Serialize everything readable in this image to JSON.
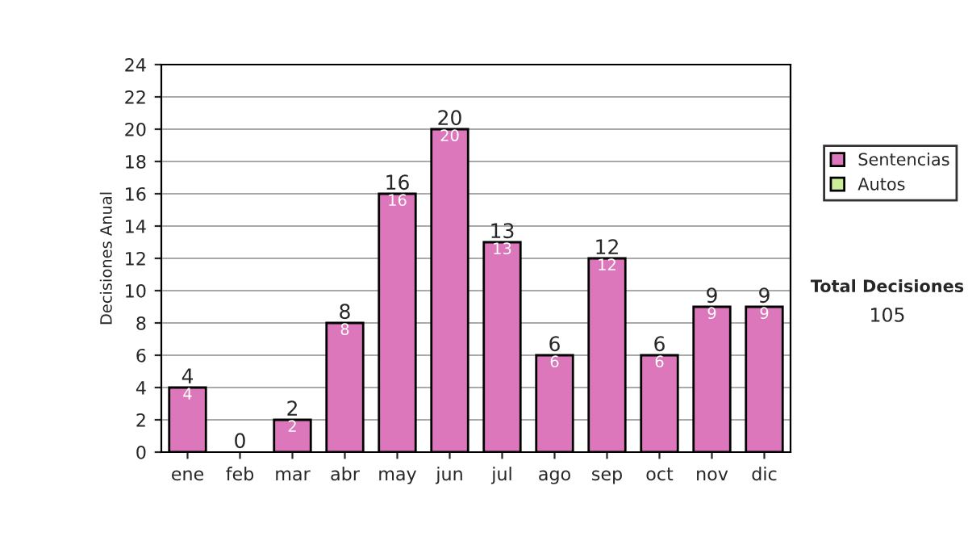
{
  "chart_data": {
    "type": "bar",
    "stacked": true,
    "ylabel": "Decisiones Anual",
    "categories": [
      "ene",
      "feb",
      "mar",
      "abr",
      "may",
      "jun",
      "jul",
      "ago",
      "sep",
      "oct",
      "nov",
      "dic"
    ],
    "series": [
      {
        "name": "Sentencias",
        "color": "#dd77bb",
        "values": [
          4,
          0,
          2,
          8,
          16,
          20,
          13,
          6,
          12,
          6,
          9,
          9
        ],
        "value_labels": [
          "4",
          null,
          "2",
          "8",
          "16",
          "20",
          "13",
          "6",
          "12",
          "6",
          "9",
          "9"
        ]
      },
      {
        "name": "Autos",
        "color": "#ccee99",
        "values": [
          0,
          0,
          0,
          0,
          0,
          0,
          0,
          0,
          0,
          0,
          0,
          0
        ]
      }
    ],
    "totals": [
      "4",
      "0",
      "2",
      "8",
      "16",
      "20",
      "13",
      "6",
      "12",
      "6",
      "9",
      "9"
    ],
    "ylim": [
      0,
      24
    ],
    "yticks": [
      0,
      2,
      4,
      6,
      8,
      10,
      12,
      14,
      16,
      18,
      20,
      22,
      24
    ],
    "grid": "y",
    "legend": "right",
    "annotations": [
      "Total Decisiones",
      "105"
    ]
  }
}
